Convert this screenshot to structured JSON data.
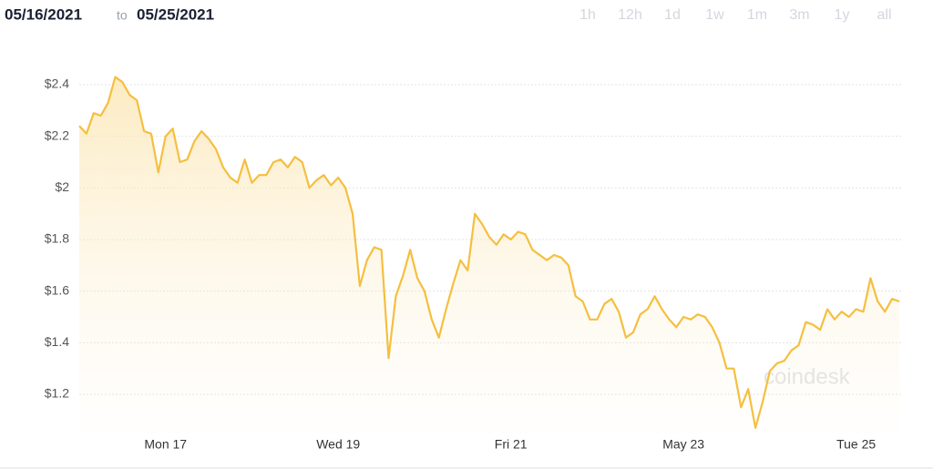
{
  "header": {
    "start": "05/16/2021",
    "separator": "to",
    "end": "05/25/2021"
  },
  "ranges": [
    "1h",
    "12h",
    "1d",
    "1w",
    "1m",
    "3m",
    "1y",
    "all"
  ],
  "watermark": "coindesk",
  "chart_data": {
    "type": "line",
    "color": "#f5bf3f",
    "grid": true,
    "ylim": [
      1.05,
      2.55
    ],
    "yticks": [
      {
        "value": 1.2,
        "label": "$1.2"
      },
      {
        "value": 1.4,
        "label": "$1.4"
      },
      {
        "value": 1.6,
        "label": "$1.6"
      },
      {
        "value": 1.8,
        "label": "$1.8"
      },
      {
        "value": 2,
        "label": "$2"
      },
      {
        "value": 2.2,
        "label": "$2.2"
      },
      {
        "value": 2.4,
        "label": "$2.4"
      }
    ],
    "categories": [
      null,
      null,
      null,
      null,
      null,
      null,
      null,
      null,
      null,
      null,
      null,
      null,
      "Mon 17",
      null,
      null,
      null,
      null,
      null,
      null,
      null,
      null,
      null,
      null,
      null,
      null,
      null,
      null,
      null,
      null,
      null,
      null,
      null,
      null,
      null,
      null,
      null,
      "Wed 19",
      null,
      null,
      null,
      null,
      null,
      null,
      null,
      null,
      null,
      null,
      null,
      null,
      null,
      null,
      null,
      null,
      null,
      null,
      null,
      null,
      null,
      null,
      null,
      "Fri 21",
      null,
      null,
      null,
      null,
      null,
      null,
      null,
      null,
      null,
      null,
      null,
      null,
      null,
      null,
      null,
      null,
      null,
      null,
      null,
      null,
      null,
      null,
      null,
      "May 23",
      null,
      null,
      null,
      null,
      null,
      null,
      null,
      null,
      null,
      null,
      null,
      null,
      null,
      null,
      null,
      null,
      null,
      null,
      null,
      null,
      null,
      null,
      null,
      "Tue 25",
      null,
      null,
      null,
      null,
      null,
      null
    ],
    "values": [
      2.24,
      2.21,
      2.29,
      2.28,
      2.33,
      2.43,
      2.41,
      2.36,
      2.34,
      2.22,
      2.21,
      2.06,
      2.2,
      2.23,
      2.1,
      2.11,
      2.18,
      2.22,
      2.19,
      2.15,
      2.08,
      2.04,
      2.02,
      2.11,
      2.02,
      2.05,
      2.05,
      2.1,
      2.11,
      2.08,
      2.12,
      2.1,
      2.0,
      2.03,
      2.05,
      2.01,
      2.04,
      2.0,
      1.9,
      1.62,
      1.72,
      1.77,
      1.76,
      1.34,
      1.58,
      1.66,
      1.76,
      1.65,
      1.6,
      1.49,
      1.42,
      1.53,
      1.63,
      1.72,
      1.68,
      1.9,
      1.86,
      1.81,
      1.78,
      1.82,
      1.8,
      1.83,
      1.82,
      1.76,
      1.74,
      1.72,
      1.74,
      1.73,
      1.7,
      1.58,
      1.56,
      1.49,
      1.49,
      1.55,
      1.57,
      1.52,
      1.42,
      1.44,
      1.51,
      1.53,
      1.58,
      1.53,
      1.49,
      1.46,
      1.5,
      1.49,
      1.51,
      1.5,
      1.46,
      1.4,
      1.3,
      1.3,
      1.15,
      1.22,
      1.07,
      1.17,
      1.29,
      1.32,
      1.33,
      1.37,
      1.39,
      1.48,
      1.47,
      1.45,
      1.53,
      1.49,
      1.52,
      1.5,
      1.53,
      1.52,
      1.65,
      1.56,
      1.52,
      1.57,
      1.56
    ]
  }
}
